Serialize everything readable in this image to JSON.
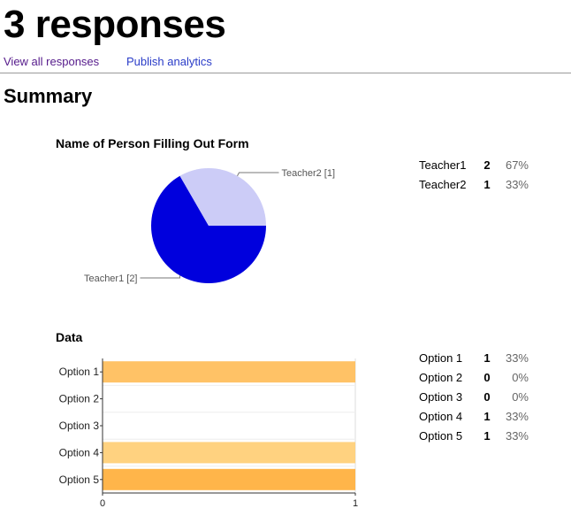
{
  "header": {
    "title": "3 responses",
    "links": {
      "view_all": "View all responses",
      "publish": "Publish analytics"
    }
  },
  "summary": {
    "heading": "Summary",
    "questions": [
      {
        "title": "Name of Person Filling Out Form",
        "stats": [
          {
            "label": "Teacher1",
            "count": "2",
            "percent": "67%"
          },
          {
            "label": "Teacher2",
            "count": "1",
            "percent": "33%"
          }
        ]
      },
      {
        "title": "Data",
        "stats": [
          {
            "label": "Option 1",
            "count": "1",
            "percent": "33%"
          },
          {
            "label": "Option 2",
            "count": "0",
            "percent": "0%"
          },
          {
            "label": "Option 3",
            "count": "0",
            "percent": "0%"
          },
          {
            "label": "Option 4",
            "count": "1",
            "percent": "33%"
          },
          {
            "label": "Option 5",
            "count": "1",
            "percent": "33%"
          }
        ]
      }
    ]
  },
  "chart_data": [
    {
      "type": "pie",
      "title": "Name of Person Filling Out Form",
      "slices": [
        {
          "label": "Teacher1 [2]",
          "value": 2,
          "color": "#0000dd"
        },
        {
          "label": "Teacher2 [1]",
          "value": 1,
          "color": "#ccccf7"
        }
      ]
    },
    {
      "type": "bar",
      "orientation": "horizontal",
      "title": "Data",
      "categories": [
        "Option 1",
        "Option 2",
        "Option 3",
        "Option 4",
        "Option 5"
      ],
      "values": [
        1,
        0,
        0,
        1,
        1
      ],
      "colors": [
        "#ffc266",
        "#ffc266",
        "#ffc266",
        "#ffd280",
        "#ffb54a"
      ],
      "xlim": [
        0,
        1
      ],
      "xticks": [
        "0",
        "1"
      ]
    }
  ]
}
